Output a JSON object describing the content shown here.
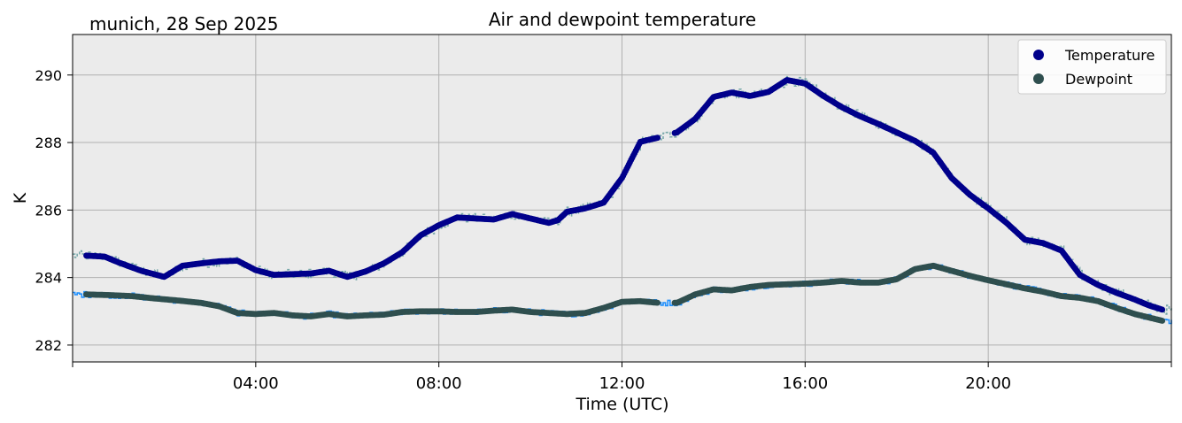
{
  "header": {
    "location_date": "munich, 28 Sep 2025"
  },
  "chart_data": {
    "type": "line",
    "title": "Air and dewpoint temperature",
    "xlabel": "Time (UTC)",
    "ylabel": "K",
    "xlim": [
      0,
      24
    ],
    "ylim": [
      281.5,
      291.2
    ],
    "grid": true,
    "background": "#ebebeb",
    "xticks": [
      {
        "value": 4,
        "label": "04:00"
      },
      {
        "value": 8,
        "label": "08:00"
      },
      {
        "value": 12,
        "label": "12:00"
      },
      {
        "value": 16,
        "label": "16:00"
      },
      {
        "value": 20,
        "label": "20:00"
      }
    ],
    "yticks": [
      {
        "value": 282,
        "label": "282"
      },
      {
        "value": 284,
        "label": "284"
      },
      {
        "value": 286,
        "label": "286"
      },
      {
        "value": 288,
        "label": "288"
      },
      {
        "value": 290,
        "label": "290"
      }
    ],
    "legend": {
      "placement": "top-right"
    },
    "series": [
      {
        "name": "Temperature",
        "color": "#00008b",
        "raw_color": "#79a9aa",
        "x": [
          0.3,
          0.7,
          1.0,
          1.5,
          2.0,
          2.4,
          2.8,
          3.2,
          3.6,
          4.0,
          4.4,
          4.8,
          5.2,
          5.6,
          6.0,
          6.4,
          6.8,
          7.2,
          7.6,
          8.0,
          8.4,
          8.8,
          9.2,
          9.6,
          10.0,
          10.4,
          10.6,
          10.8,
          11.2,
          11.6,
          12.0,
          12.4,
          12.8,
          13.2,
          13.6,
          14.0,
          14.4,
          14.8,
          15.2,
          15.6,
          16.0,
          16.4,
          16.8,
          17.2,
          17.6,
          18.0,
          18.4,
          18.8,
          19.2,
          19.6,
          20.0,
          20.4,
          20.8,
          21.2,
          21.6,
          22.0,
          22.4,
          22.8,
          23.2,
          23.5,
          23.8
        ],
        "values": [
          284.65,
          284.62,
          284.45,
          284.2,
          284.02,
          284.35,
          284.42,
          284.48,
          284.5,
          284.22,
          284.08,
          284.1,
          284.12,
          284.2,
          284.02,
          284.18,
          284.42,
          284.75,
          285.25,
          285.55,
          285.78,
          285.75,
          285.72,
          285.88,
          285.75,
          285.62,
          285.7,
          285.95,
          286.05,
          286.22,
          286.95,
          288.02,
          288.15,
          288.3,
          288.7,
          289.35,
          289.48,
          289.38,
          289.5,
          289.85,
          289.75,
          289.38,
          289.05,
          288.78,
          288.55,
          288.3,
          288.05,
          287.7,
          286.95,
          286.45,
          286.05,
          285.62,
          285.12,
          285.02,
          284.8,
          284.08,
          283.78,
          283.55,
          283.35,
          283.18,
          283.05
        ],
        "gap_after_x": 12.8
      },
      {
        "name": "Dewpoint",
        "color": "#2f4f4f",
        "raw_color": "#1e90ff",
        "x": [
          0.3,
          0.8,
          1.3,
          1.8,
          2.3,
          2.8,
          3.2,
          3.6,
          4.0,
          4.4,
          4.8,
          5.2,
          5.6,
          6.0,
          6.4,
          6.8,
          7.2,
          7.6,
          8.0,
          8.4,
          8.8,
          9.2,
          9.6,
          10.0,
          10.4,
          10.8,
          11.2,
          11.6,
          12.0,
          12.4,
          12.8,
          13.2,
          13.6,
          14.0,
          14.4,
          14.8,
          15.2,
          15.6,
          16.0,
          16.4,
          16.8,
          17.2,
          17.6,
          18.0,
          18.4,
          18.8,
          19.2,
          19.6,
          20.0,
          20.4,
          20.8,
          21.2,
          21.6,
          22.0,
          22.4,
          22.8,
          23.2,
          23.5,
          23.8
        ],
        "values": [
          283.5,
          283.48,
          283.45,
          283.38,
          283.32,
          283.25,
          283.15,
          282.95,
          282.92,
          282.95,
          282.88,
          282.85,
          282.92,
          282.85,
          282.88,
          282.9,
          282.98,
          283.0,
          283.0,
          282.98,
          282.98,
          283.02,
          283.05,
          282.98,
          282.95,
          282.92,
          282.95,
          283.1,
          283.28,
          283.3,
          283.25,
          283.25,
          283.5,
          283.65,
          283.62,
          283.72,
          283.78,
          283.8,
          283.82,
          283.85,
          283.9,
          283.85,
          283.85,
          283.95,
          284.25,
          284.35,
          284.2,
          284.05,
          283.92,
          283.8,
          283.68,
          283.58,
          283.45,
          283.4,
          283.3,
          283.1,
          282.92,
          282.82,
          282.72
        ],
        "gap_after_x": 12.8
      }
    ]
  }
}
